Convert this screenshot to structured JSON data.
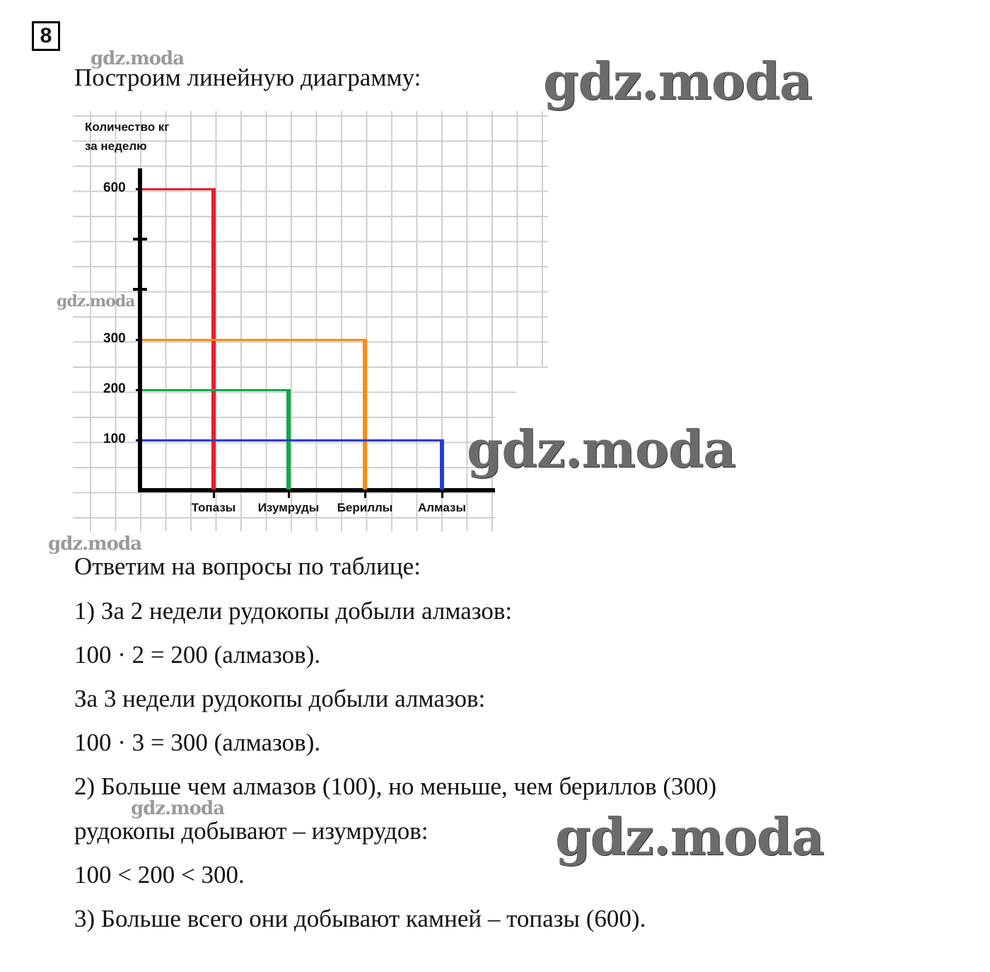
{
  "task_number": "8",
  "intro": "Построим линейную диаграмму:",
  "chart_data": {
    "type": "line-diagram",
    "ylabel": "Количество кг за неделю",
    "ylabel_lines": [
      "Количество кг",
      "за неделю"
    ],
    "categories": [
      "Топазы",
      "Изумруды",
      "Бериллы",
      "Алмазы"
    ],
    "values": [
      600,
      200,
      300,
      100
    ],
    "colors": [
      "#e8202a",
      "#12a84a",
      "#ff8a10",
      "#2a3cd0"
    ],
    "yticks": [
      100,
      200,
      300,
      600
    ],
    "ylim": [
      0,
      650
    ],
    "grid": true
  },
  "answers_heading": "Ответим на вопросы по таблице:",
  "lines": [
    "1) За 2 недели рудокопы добыли алмазов:",
    "100 · 2 = 200 (алмазов).",
    "За 3 недели рудокопы добыли алмазов:",
    "100 · 3 = 300 (алмазов).",
    "2) Больше чем алмазов (100), но меньше, чем бериллов (300)",
    "рудокопы добывают – изумрудов:",
    "100 < 200 < 300.",
    "3) Больше всего они добывают камней – топазы (600)."
  ],
  "watermark": "gdz.moda"
}
